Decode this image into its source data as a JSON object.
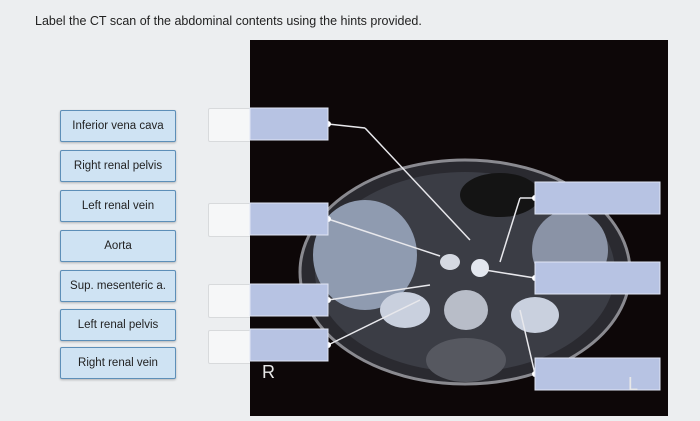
{
  "instruction": "Label the CT scan of the abdominal contents using the hints provided.",
  "labels": [
    "Inferior vena cava",
    "Right renal pelvis",
    "Left renal vein",
    "Aorta",
    "Sup. mesenteric a.",
    "Left renal pelvis",
    "Right renal vein"
  ],
  "image": {
    "left_marker": "R",
    "right_marker": "L"
  }
}
